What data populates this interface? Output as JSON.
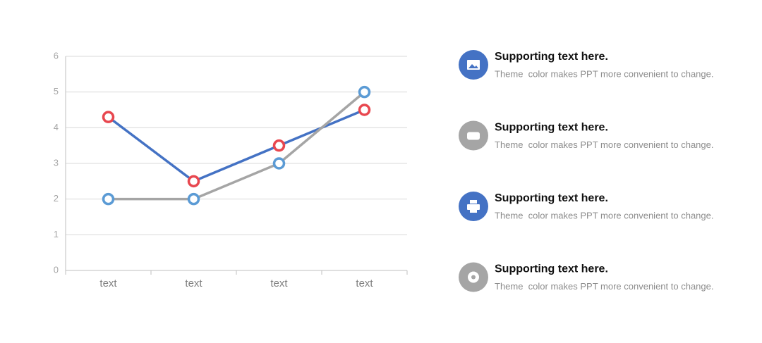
{
  "chart_data": {
    "type": "line",
    "categories": [
      "text",
      "text",
      "text",
      "text"
    ],
    "series": [
      {
        "color": "#4472c4",
        "marker_color": "#e8474f",
        "values": [
          4.3,
          2.5,
          3.5,
          4.5
        ]
      },
      {
        "color": "#a5a5a5",
        "marker_color": "#5b9bd5",
        "values": [
          2,
          2,
          3,
          5
        ]
      }
    ],
    "ylim": [
      0,
      6
    ],
    "yticks": [
      0,
      1,
      2,
      3,
      4,
      5,
      6
    ],
    "grid": true
  },
  "items": [
    {
      "title": "Supporting text here.",
      "text": "Theme  color makes PPT more convenient to change.",
      "color": "#4472c4"
    },
    {
      "title": "Supporting text here.",
      "text": "Theme  color makes PPT more convenient to change.",
      "color": "#a5a5a5"
    },
    {
      "title": "Supporting text here.",
      "text": "Theme  color makes PPT more convenient to change.",
      "color": "#4472c4"
    },
    {
      "title": "Supporting text here.",
      "text": "Theme  color makes PPT more convenient to change.",
      "color": "#a5a5a5"
    }
  ]
}
